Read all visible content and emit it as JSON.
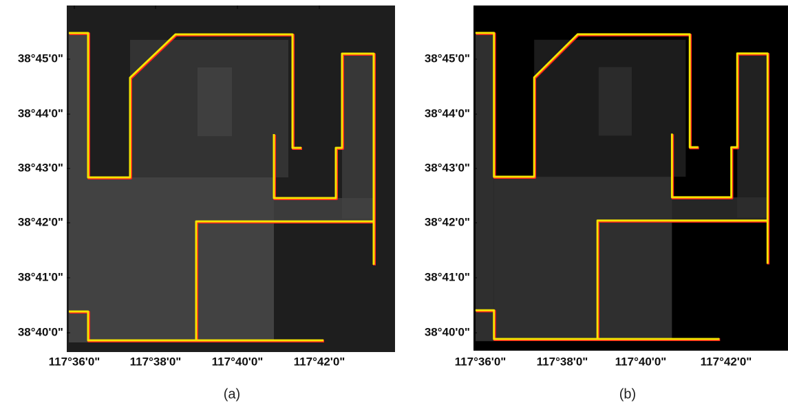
{
  "panels": [
    {
      "caption": "(a)",
      "y_labels": [
        "38°45'0\"",
        "38°44'0\"",
        "38°43'0\"",
        "38°42'0\"",
        "38°41'0\"",
        "38°40'0\""
      ],
      "x_labels": [
        "117°36'0\"",
        "117°38'0\"",
        "117°40'0\"",
        "117°42'0\""
      ]
    },
    {
      "caption": "(b)",
      "y_labels": [
        "38°45'0\"",
        "38°44'0\"",
        "38°43'0\"",
        "38°42'0\"",
        "38°41'0\"",
        "38°40'0\""
      ],
      "x_labels": [
        "117°36'0\"",
        "117°38'0\"",
        "117°40'0\"",
        "117°42'0\""
      ]
    }
  ]
}
